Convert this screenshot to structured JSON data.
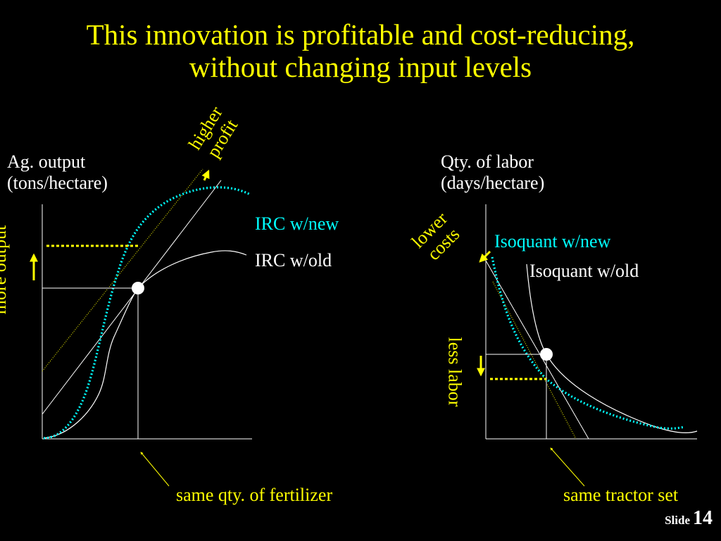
{
  "title": {
    "line1": "This innovation is profitable and cost-reducing,",
    "line2": "without changing input levels"
  },
  "left_panel": {
    "y_axis_label_line1": "Ag. output",
    "y_axis_label_line2": "(tons/hectare)",
    "curve_new_label": "IRC w/new",
    "curve_old_label": "IRC w/old",
    "profit_note_line1": "higher",
    "profit_note_line2": "profit",
    "output_note": "more output",
    "x_note": "same qty. of fertilizer"
  },
  "right_panel": {
    "y_axis_label_line1": "Qty. of labor",
    "y_axis_label_line2": "(days/hectare)",
    "curve_new_label": "Isoquant w/new",
    "curve_old_label": "Isoquant w/old",
    "cost_note_line1": "lower",
    "cost_note_line2": "costs",
    "labor_note": "less labor",
    "x_note": "same tractor set"
  },
  "footer": {
    "slide_word": "Slide",
    "slide_number": "14"
  },
  "colors": {
    "background": "#000000",
    "title": "#ffff00",
    "new_curve": "#00ffff",
    "old_curve": "#ffffff",
    "annotation": "#ffff00"
  }
}
